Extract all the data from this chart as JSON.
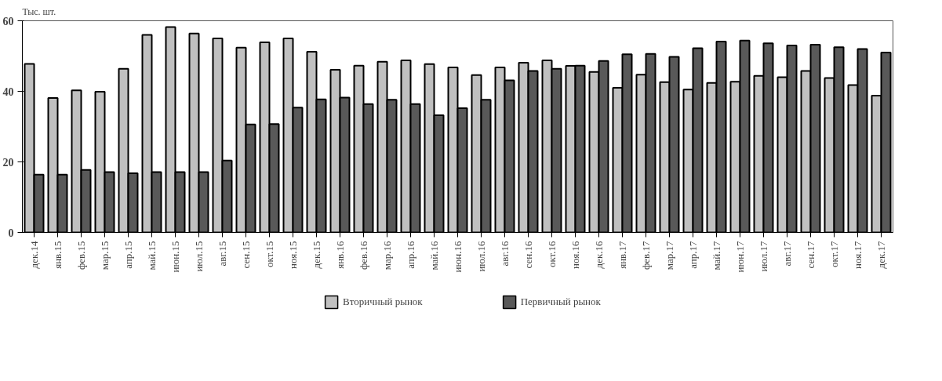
{
  "chart_data": {
    "type": "bar",
    "ylabel": "Тыс. шт.",
    "categories": [
      "дек.14",
      "янв.15",
      "фев.15",
      "мар.15",
      "апр.15",
      "май.15",
      "июн.15",
      "июл.15",
      "авг.15",
      "сен.15",
      "окт.15",
      "ноя.15",
      "дек.15",
      "янв.16",
      "фев.16",
      "мар.16",
      "апр.16",
      "май.16",
      "июн.16",
      "июл.16",
      "авг.16",
      "сен.16",
      "окт.16",
      "ноя.16",
      "дек.16",
      "янв.17",
      "фев.17",
      "мар.17",
      "апр.17",
      "май.17",
      "июн.17",
      "июл.17",
      "авг.17",
      "сен.17",
      "окт.17",
      "ноя.17",
      "дек.17"
    ],
    "series": [
      {
        "name": "Вторичный рынок",
        "color": "#c0c0c0",
        "values": [
          47.8,
          38.1,
          40.3,
          39.9,
          46.4,
          56.0,
          58.2,
          56.4,
          55.0,
          52.4,
          53.9,
          55.0,
          51.2,
          46.1,
          47.3,
          48.4,
          48.8,
          47.7,
          46.8,
          44.6,
          46.8,
          48.1,
          48.8,
          47.2,
          45.5,
          41.0,
          44.7,
          42.6,
          40.5,
          42.4,
          42.7,
          44.4,
          44.0,
          45.8,
          43.8,
          41.8,
          38.8
        ]
      },
      {
        "name": "Первичный рынок",
        "color": "#595959",
        "values": [
          16.4,
          16.4,
          17.7,
          17.1,
          16.8,
          17.1,
          17.1,
          17.1,
          20.4,
          30.6,
          30.7,
          35.4,
          37.7,
          38.2,
          36.4,
          37.6,
          36.4,
          33.2,
          35.2,
          37.6,
          43.1,
          45.8,
          46.4,
          47.3,
          48.6,
          50.5,
          50.6,
          49.8,
          52.2,
          54.1,
          54.4,
          53.6,
          53.0,
          53.2,
          52.5,
          52.0,
          51.0
        ]
      }
    ],
    "ylim": [
      0,
      60
    ],
    "yticks": [
      0,
      20,
      40,
      60
    ],
    "legend": "bottom"
  }
}
